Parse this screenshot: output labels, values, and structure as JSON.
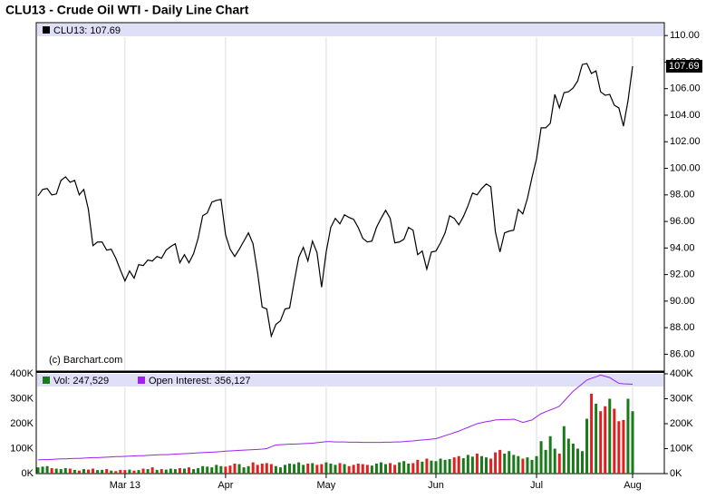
{
  "chart_data": [
    {
      "type": "line",
      "title": "CLU13 - Crude Oil WTI - Daily Line Chart",
      "legend_label": "CLU13: 107.69",
      "last_value_label": "107.69",
      "credit": "(c) Barchart.com",
      "color": "#000000",
      "categories": [
        null,
        null,
        null,
        null,
        null,
        null,
        null,
        null,
        null,
        null,
        null,
        null,
        null,
        null,
        null,
        null,
        null,
        null,
        null,
        "Mar 13",
        null,
        null,
        null,
        null,
        null,
        null,
        null,
        null,
        null,
        null,
        null,
        null,
        null,
        null,
        null,
        null,
        null,
        null,
        null,
        null,
        null,
        "Apr",
        null,
        null,
        null,
        null,
        null,
        null,
        null,
        null,
        null,
        null,
        null,
        null,
        null,
        null,
        null,
        null,
        null,
        null,
        null,
        null,
        null,
        "May",
        null,
        null,
        null,
        null,
        null,
        null,
        null,
        null,
        null,
        null,
        null,
        null,
        null,
        null,
        null,
        null,
        null,
        null,
        null,
        null,
        null,
        null,
        null,
        "Jun",
        null,
        null,
        null,
        null,
        null,
        null,
        null,
        null,
        null,
        null,
        null,
        null,
        null,
        null,
        null,
        null,
        null,
        null,
        null,
        null,
        null,
        "Jul",
        null,
        null,
        null,
        null,
        null,
        null,
        null,
        null,
        null,
        null,
        null,
        null,
        null,
        null,
        null,
        null,
        null,
        null,
        null,
        null,
        "Aug"
      ],
      "values": [
        97.93,
        98.41,
        98.48,
        98.0,
        98.07,
        99.09,
        99.36,
        98.95,
        99.09,
        98.0,
        98.41,
        96.91,
        94.18,
        94.45,
        94.45,
        93.84,
        93.91,
        93.23,
        92.34,
        91.52,
        92.27,
        91.73,
        92.75,
        92.68,
        93.09,
        93.02,
        93.36,
        93.23,
        93.84,
        94.11,
        94.32,
        92.89,
        93.5,
        92.89,
        93.57,
        94.73,
        96.43,
        96.64,
        97.45,
        97.59,
        97.66,
        95.0,
        93.91,
        93.36,
        93.91,
        94.52,
        95.14,
        94.32,
        92.14,
        89.55,
        89.41,
        87.36,
        88.25,
        88.52,
        89.41,
        89.48,
        91.45,
        93.3,
        94.05,
        93.02,
        94.52,
        93.64,
        91.05,
        93.7,
        95.55,
        96.23,
        95.82,
        96.5,
        96.3,
        96.16,
        95.55,
        94.73,
        94.45,
        94.52,
        95.55,
        96.23,
        96.84,
        96.23,
        94.39,
        94.45,
        94.66,
        95.55,
        95.34,
        93.5,
        93.77,
        92.41,
        93.7,
        93.77,
        94.39,
        95.14,
        96.43,
        96.23,
        95.75,
        96.36,
        97.18,
        98.14,
        98.0,
        98.48,
        98.82,
        98.61,
        95.2,
        93.7,
        95.14,
        95.27,
        95.34,
        96.91,
        96.57,
        97.73,
        99.3,
        100.73,
        103.05,
        103.05,
        103.39,
        105.57,
        104.55,
        105.7,
        105.77,
        106.05,
        106.59,
        107.82,
        107.89,
        107.14,
        107.34,
        105.77,
        105.5,
        105.57,
        104.75,
        104.55,
        103.18,
        105.09,
        107.69
      ],
      "ylim": [
        84.8,
        110.9
      ],
      "yticks": [
        {
          "value": 86,
          "label": "86.00"
        },
        {
          "value": 88,
          "label": "88.00"
        },
        {
          "value": 90,
          "label": "90.00"
        },
        {
          "value": 92,
          "label": "92.00"
        },
        {
          "value": 94,
          "label": "94.00"
        },
        {
          "value": 96,
          "label": "96.00"
        },
        {
          "value": 98,
          "label": "98.00"
        },
        {
          "value": 100,
          "label": "100.00"
        },
        {
          "value": 102,
          "label": "102.00"
        },
        {
          "value": 104,
          "label": "104.00"
        },
        {
          "value": 106,
          "label": "106.00"
        },
        {
          "value": 108,
          "label": "108.00"
        },
        {
          "value": 110,
          "label": "110.00"
        }
      ],
      "grid": true
    },
    {
      "type": "bar-line",
      "series": [
        {
          "name": "Vol: 247,529",
          "type": "bar",
          "color": "#1a7a1a",
          "up_color": "#1a7a1a",
          "down_color": "#e02020",
          "values": [
            25000,
            28000,
            30000,
            22000,
            20000,
            18000,
            22000,
            20000,
            15000,
            12000,
            18000,
            16000,
            20000,
            14000,
            15000,
            18000,
            12000,
            10000,
            15000,
            14000,
            16000,
            12000,
            14000,
            20000,
            18000,
            25000,
            15000,
            18000,
            16000,
            20000,
            18000,
            22000,
            20000,
            25000,
            18000,
            22000,
            30000,
            28000,
            25000,
            35000,
            30000,
            28000,
            32000,
            40000,
            38000,
            25000,
            30000,
            45000,
            35000,
            40000,
            42000,
            38000,
            30000,
            25000,
            35000,
            40000,
            38000,
            45000,
            35000,
            40000,
            42000,
            35000,
            38000,
            45000,
            40000,
            35000,
            42000,
            38000,
            30000,
            35000,
            40000,
            38000,
            35000,
            32000,
            40000,
            45000,
            38000,
            42000,
            35000,
            45000,
            50000,
            40000,
            42000,
            55000,
            48000,
            60000,
            52000,
            50000,
            60000,
            55000,
            58000,
            65000,
            70000,
            62000,
            75000,
            68000,
            80000,
            70000,
            65000,
            60000,
            85000,
            95000,
            80000,
            90000,
            75000,
            70000,
            60000,
            65000,
            55000,
            70000,
            130000,
            95000,
            150000,
            100000,
            80000,
            190000,
            140000,
            120000,
            100000,
            90000,
            220000,
            320000,
            280000,
            250000,
            270000,
            300000,
            260000,
            210000,
            215000,
            300000,
            250000
          ]
        },
        {
          "name": "Open Interest: 356,127",
          "type": "line",
          "color": "#a020f0",
          "values": [
            55000,
            56000,
            56000,
            57000,
            58000,
            59000,
            59000,
            60000,
            61000,
            61000,
            62000,
            63000,
            64000,
            64000,
            65000,
            66000,
            67000,
            68000,
            68000,
            69000,
            70000,
            71000,
            72000,
            72000,
            73000,
            74000,
            75000,
            76000,
            76000,
            77000,
            78000,
            79000,
            80000,
            81000,
            82000,
            83000,
            84000,
            85000,
            86000,
            87000,
            88000,
            90000,
            91000,
            92000,
            93000,
            94000,
            95000,
            96000,
            97000,
            98000,
            100000,
            108000,
            115000,
            116000,
            117000,
            118000,
            118000,
            119000,
            120000,
            121000,
            122000,
            124000,
            126000,
            128000,
            128000,
            127000,
            127000,
            127000,
            126000,
            126000,
            126000,
            125000,
            125000,
            125000,
            125000,
            125000,
            126000,
            126000,
            127000,
            127000,
            128000,
            130000,
            131000,
            133000,
            135000,
            136000,
            138000,
            140000,
            146000,
            152000,
            158000,
            164000,
            170000,
            178000,
            185000,
            193000,
            200000,
            204000,
            208000,
            211000,
            215000,
            216000,
            217000,
            217000,
            218000,
            212000,
            205000,
            210000,
            215000,
            228000,
            240000,
            248000,
            255000,
            262000,
            270000,
            290000,
            310000,
            330000,
            345000,
            360000,
            375000,
            382000,
            388000,
            395000,
            390000,
            385000,
            373000,
            362000,
            360000,
            359000,
            358000
          ]
        }
      ],
      "ylim": [
        0,
        400000
      ],
      "yticks": [
        {
          "value": 0,
          "label": "0K"
        },
        {
          "value": 100000,
          "label": "100K"
        },
        {
          "value": 200000,
          "label": "200K"
        },
        {
          "value": 300000,
          "label": "300K"
        },
        {
          "value": 400000,
          "label": "400K"
        }
      ]
    }
  ]
}
